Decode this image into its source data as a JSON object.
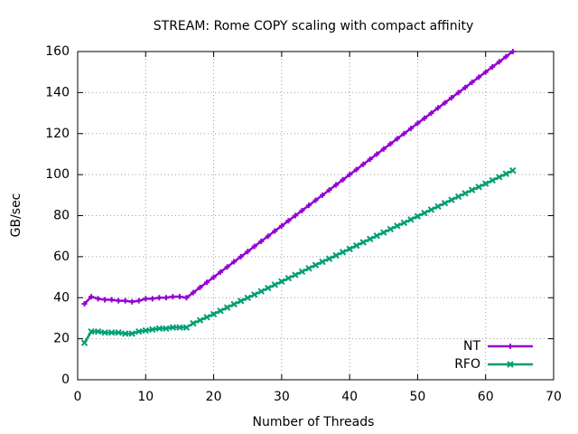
{
  "chart_data": {
    "type": "line",
    "title": "STREAM: Rome COPY scaling with compact affinity",
    "x_label": "Number of Threads",
    "y_label": "GB/sec",
    "x": [
      1,
      2,
      3,
      4,
      5,
      6,
      7,
      8,
      9,
      10,
      11,
      12,
      13,
      14,
      15,
      16,
      17,
      18,
      19,
      20,
      21,
      22,
      23,
      24,
      25,
      26,
      27,
      28,
      29,
      30,
      31,
      32,
      33,
      34,
      35,
      36,
      37,
      38,
      39,
      40,
      41,
      42,
      43,
      44,
      45,
      46,
      47,
      48,
      49,
      50,
      51,
      52,
      53,
      54,
      55,
      56,
      57,
      58,
      59,
      60,
      61,
      62,
      63,
      64
    ],
    "series": [
      {
        "name": "NT",
        "color": "#9400d3",
        "marker": "plus",
        "values": [
          37,
          40.5,
          39.5,
          39,
          39,
          38.5,
          38.5,
          38,
          38.5,
          39.5,
          39.5,
          40,
          40,
          40.5,
          40.5,
          40,
          42.5,
          45,
          47.5,
          50,
          52.5,
          55,
          57.5,
          60,
          62.5,
          65,
          67.5,
          70,
          72.5,
          75,
          77.5,
          80,
          82.5,
          85,
          87.5,
          90,
          92.5,
          95,
          97.5,
          100,
          102.5,
          105,
          107.5,
          110,
          112.5,
          115,
          117.5,
          120,
          122.5,
          125,
          127.5,
          130,
          132.5,
          135,
          137.5,
          140,
          142.5,
          145,
          147.5,
          150,
          152.5,
          155,
          157.5,
          160
        ]
      },
      {
        "name": "RFO",
        "color": "#009e73",
        "marker": "cross",
        "values": [
          18,
          23.5,
          23.5,
          23,
          23,
          23,
          22.5,
          22.5,
          23.5,
          24,
          24.5,
          25,
          25,
          25.5,
          25.5,
          25.5,
          27.5,
          29,
          30.5,
          32,
          33.6,
          35.2,
          36.8,
          38.4,
          39.9,
          41.5,
          43.1,
          44.7,
          46.3,
          47.9,
          49.5,
          51.1,
          52.7,
          54.3,
          55.9,
          57.5,
          59.0,
          60.6,
          62.2,
          63.8,
          65.4,
          67.0,
          68.6,
          70.2,
          71.8,
          73.4,
          75.0,
          76.5,
          78.1,
          79.7,
          81.3,
          82.9,
          84.5,
          86.1,
          87.7,
          89.3,
          90.9,
          92.5,
          94.0,
          95.6,
          97.2,
          98.8,
          100.4,
          102
        ]
      }
    ],
    "xlim": [
      0,
      70
    ],
    "xticks": [
      0,
      10,
      20,
      30,
      40,
      50,
      60,
      70
    ],
    "ylim": [
      0,
      160
    ],
    "yticks": [
      0,
      20,
      40,
      60,
      80,
      100,
      120,
      140,
      160
    ],
    "grid": true,
    "legend": "bottom-right"
  }
}
